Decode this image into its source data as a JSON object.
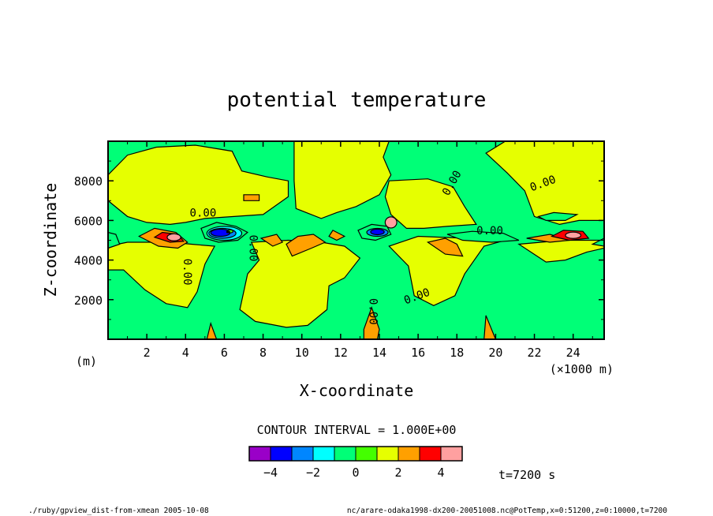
{
  "chart_data": {
    "type": "contour",
    "title": "potential temperature",
    "xlabel": "X-coordinate",
    "ylabel": "Z-coordinate",
    "x_unit_left": "(m)",
    "x_unit_right": "(×1000 m)",
    "xlim": [
      0,
      25.6
    ],
    "ylim": [
      0,
      10000
    ],
    "xticks": [
      2,
      4,
      6,
      8,
      10,
      12,
      14,
      16,
      18,
      20,
      22,
      24
    ],
    "xtick_labels": [
      "2",
      "4",
      "6",
      "8",
      "10",
      "12",
      "14",
      "16",
      "18",
      "20",
      "22",
      "24"
    ],
    "yticks": [
      2000,
      4000,
      6000,
      8000
    ],
    "ytick_labels": [
      "2000",
      "4000",
      "6000",
      "8000"
    ],
    "contour_label": "0.00",
    "contour_interval_text": "CONTOUR INTERVAL = 1.000E+00",
    "colorbar": {
      "levels": [
        -5,
        -4,
        -3,
        -2,
        -1,
        0,
        1,
        2,
        3,
        4,
        5
      ],
      "tick_values": [
        -4,
        -2,
        0,
        2,
        4
      ],
      "tick_labels": [
        "−4",
        "−2",
        "0",
        "2",
        "4"
      ],
      "colors": [
        "#9a00c8",
        "#0000ff",
        "#0086ff",
        "#00ffff",
        "#00ff77",
        "#44ff00",
        "#e6ff00",
        "#ffa000",
        "#ff0000",
        "#ffa0a0"
      ]
    },
    "time_label": "t=7200 s"
  },
  "footer": {
    "left": "./ruby/gpview_dist-from-xmean  2005-10-08",
    "right": "nc/arare-odaka1998-dx200-20051008.nc@PotTemp,x=0:51200,z=0:10000,t=7200"
  }
}
